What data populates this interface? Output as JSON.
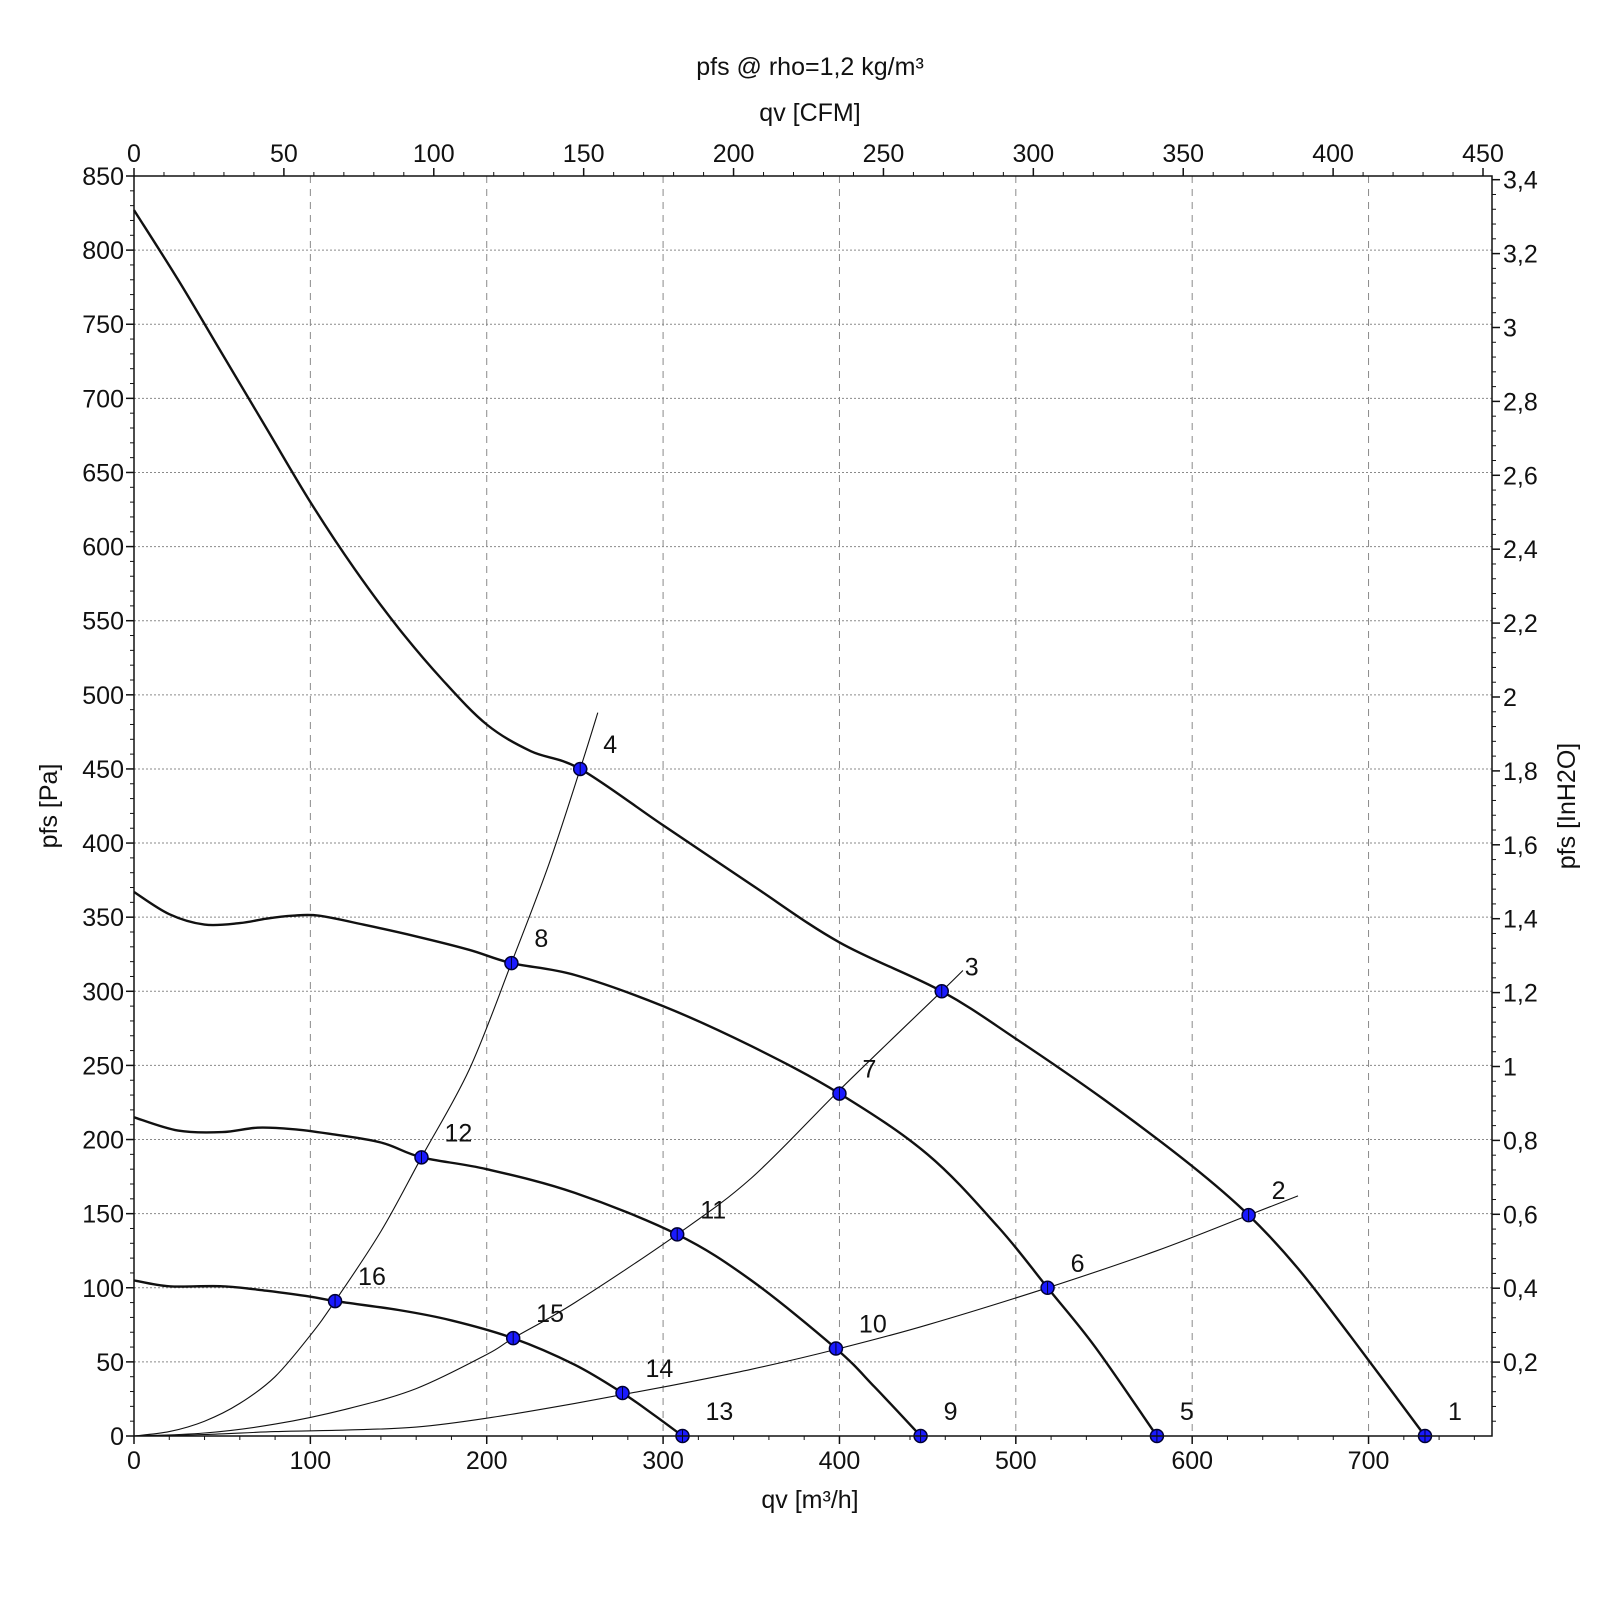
{
  "chart_data": {
    "type": "line",
    "title": "pfs @ rho=1,2 kg/m³",
    "xlabel": "qv [m³/h]",
    "ylabel": "pfs [Pa]",
    "x2label": "qv [CFM]",
    "y2label": "pfs [InH2O]",
    "xlim": [
      0,
      770
    ],
    "ylim": [
      0,
      850
    ],
    "x2lim": [
      0,
      453
    ],
    "y2lim": [
      0,
      3.41
    ],
    "xticks": [
      "0",
      "100",
      "200",
      "300",
      "400",
      "500",
      "600",
      "700"
    ],
    "yticks": [
      "0",
      "50",
      "100",
      "150",
      "200",
      "250",
      "300",
      "350",
      "400",
      "450",
      "500",
      "550",
      "600",
      "650",
      "700",
      "750",
      "800",
      "850"
    ],
    "x2ticks": [
      "0",
      "50",
      "100",
      "150",
      "200",
      "250",
      "300",
      "350",
      "400",
      "450"
    ],
    "y2ticks": [
      "0,2",
      "0,4",
      "0,6",
      "0,8",
      "1",
      "1,2",
      "1,4",
      "1,6",
      "1,8",
      "2",
      "2,2",
      "2,4",
      "2,6",
      "2,8",
      "3",
      "3,2",
      "3,4"
    ],
    "grid": true,
    "fan_curves": [
      {
        "x": [
          0,
          25,
          50,
          75,
          100,
          125,
          150,
          175,
          200,
          225,
          253,
          300,
          350,
          400,
          458,
          500,
          550,
          600,
          632,
          660,
          690,
          732
        ],
        "y": [
          827,
          780,
          730,
          680,
          630,
          585,
          545,
          510,
          480,
          462,
          450,
          412,
          372,
          333,
          300,
          268,
          227,
          182,
          149,
          113,
          67,
          0
        ]
      },
      {
        "x": [
          0,
          20,
          40,
          60,
          75,
          90,
          105,
          130,
          160,
          190,
          214,
          250,
          300,
          350,
          400,
          450,
          490,
          518,
          545,
          580
        ],
        "y": [
          367,
          352,
          345,
          346,
          349,
          351,
          351,
          345,
          337,
          328,
          319,
          311,
          290,
          263,
          231,
          190,
          141,
          100,
          60,
          0
        ]
      },
      {
        "x": [
          0,
          25,
          50,
          70,
          90,
          110,
          140,
          163,
          200,
          250,
          308,
          350,
          398,
          420,
          446
        ],
        "y": [
          215,
          206,
          205,
          208,
          207,
          204,
          198,
          188,
          180,
          164,
          136,
          105,
          59,
          33,
          0
        ]
      },
      {
        "x": [
          0,
          20,
          50,
          75,
          100,
          114,
          150,
          180,
          215,
          250,
          277,
          295,
          311
        ],
        "y": [
          105,
          101,
          101,
          98,
          94,
          91,
          85,
          78,
          66,
          48,
          29,
          14,
          0
        ]
      }
    ],
    "system_curves": [
      {
        "x": [
          0,
          40,
          80,
          120,
          160,
          200,
          250,
          300,
          350,
          400,
          450,
          518,
          580,
          632,
          660
        ],
        "y": [
          0,
          1,
          3,
          4,
          6,
          12,
          22,
          33,
          45,
          59,
          75,
          100,
          125,
          149,
          162
        ]
      },
      {
        "x": [
          0,
          40,
          80,
          120,
          160,
          200,
          215,
          250,
          308,
          350,
          398,
          430,
          458,
          470
        ],
        "y": [
          0,
          2,
          8,
          18,
          32,
          55,
          66,
          90,
          136,
          174,
          231,
          268,
          300,
          314
        ]
      },
      {
        "x": [
          0,
          20,
          40,
          60,
          80,
          100,
          114,
          140,
          163,
          190,
          214,
          235,
          253,
          263
        ],
        "y": [
          0,
          3,
          10,
          22,
          40,
          68,
          91,
          138,
          188,
          247,
          319,
          385,
          450,
          488
        ]
      }
    ],
    "points": [
      {
        "label": "1",
        "x": 732,
        "y": 0
      },
      {
        "label": "2",
        "x": 632,
        "y": 149
      },
      {
        "label": "3",
        "x": 458,
        "y": 300
      },
      {
        "label": "4",
        "x": 253,
        "y": 450
      },
      {
        "label": "5",
        "x": 580,
        "y": 0
      },
      {
        "label": "6",
        "x": 518,
        "y": 100
      },
      {
        "label": "7",
        "x": 400,
        "y": 231
      },
      {
        "label": "8",
        "x": 214,
        "y": 319
      },
      {
        "label": "9",
        "x": 446,
        "y": 0
      },
      {
        "label": "10",
        "x": 398,
        "y": 59
      },
      {
        "label": "11",
        "x": 308,
        "y": 136
      },
      {
        "label": "12",
        "x": 163,
        "y": 188
      },
      {
        "label": "13",
        "x": 311,
        "y": 0
      },
      {
        "label": "14",
        "x": 277,
        "y": 29
      },
      {
        "label": "15",
        "x": 215,
        "y": 66
      },
      {
        "label": "16",
        "x": 114,
        "y": 91
      }
    ],
    "colors": {
      "curve": "#111111",
      "point_fill": "#1a1aff",
      "point_stroke": "#000033",
      "grid": "#8a8a8a"
    }
  }
}
